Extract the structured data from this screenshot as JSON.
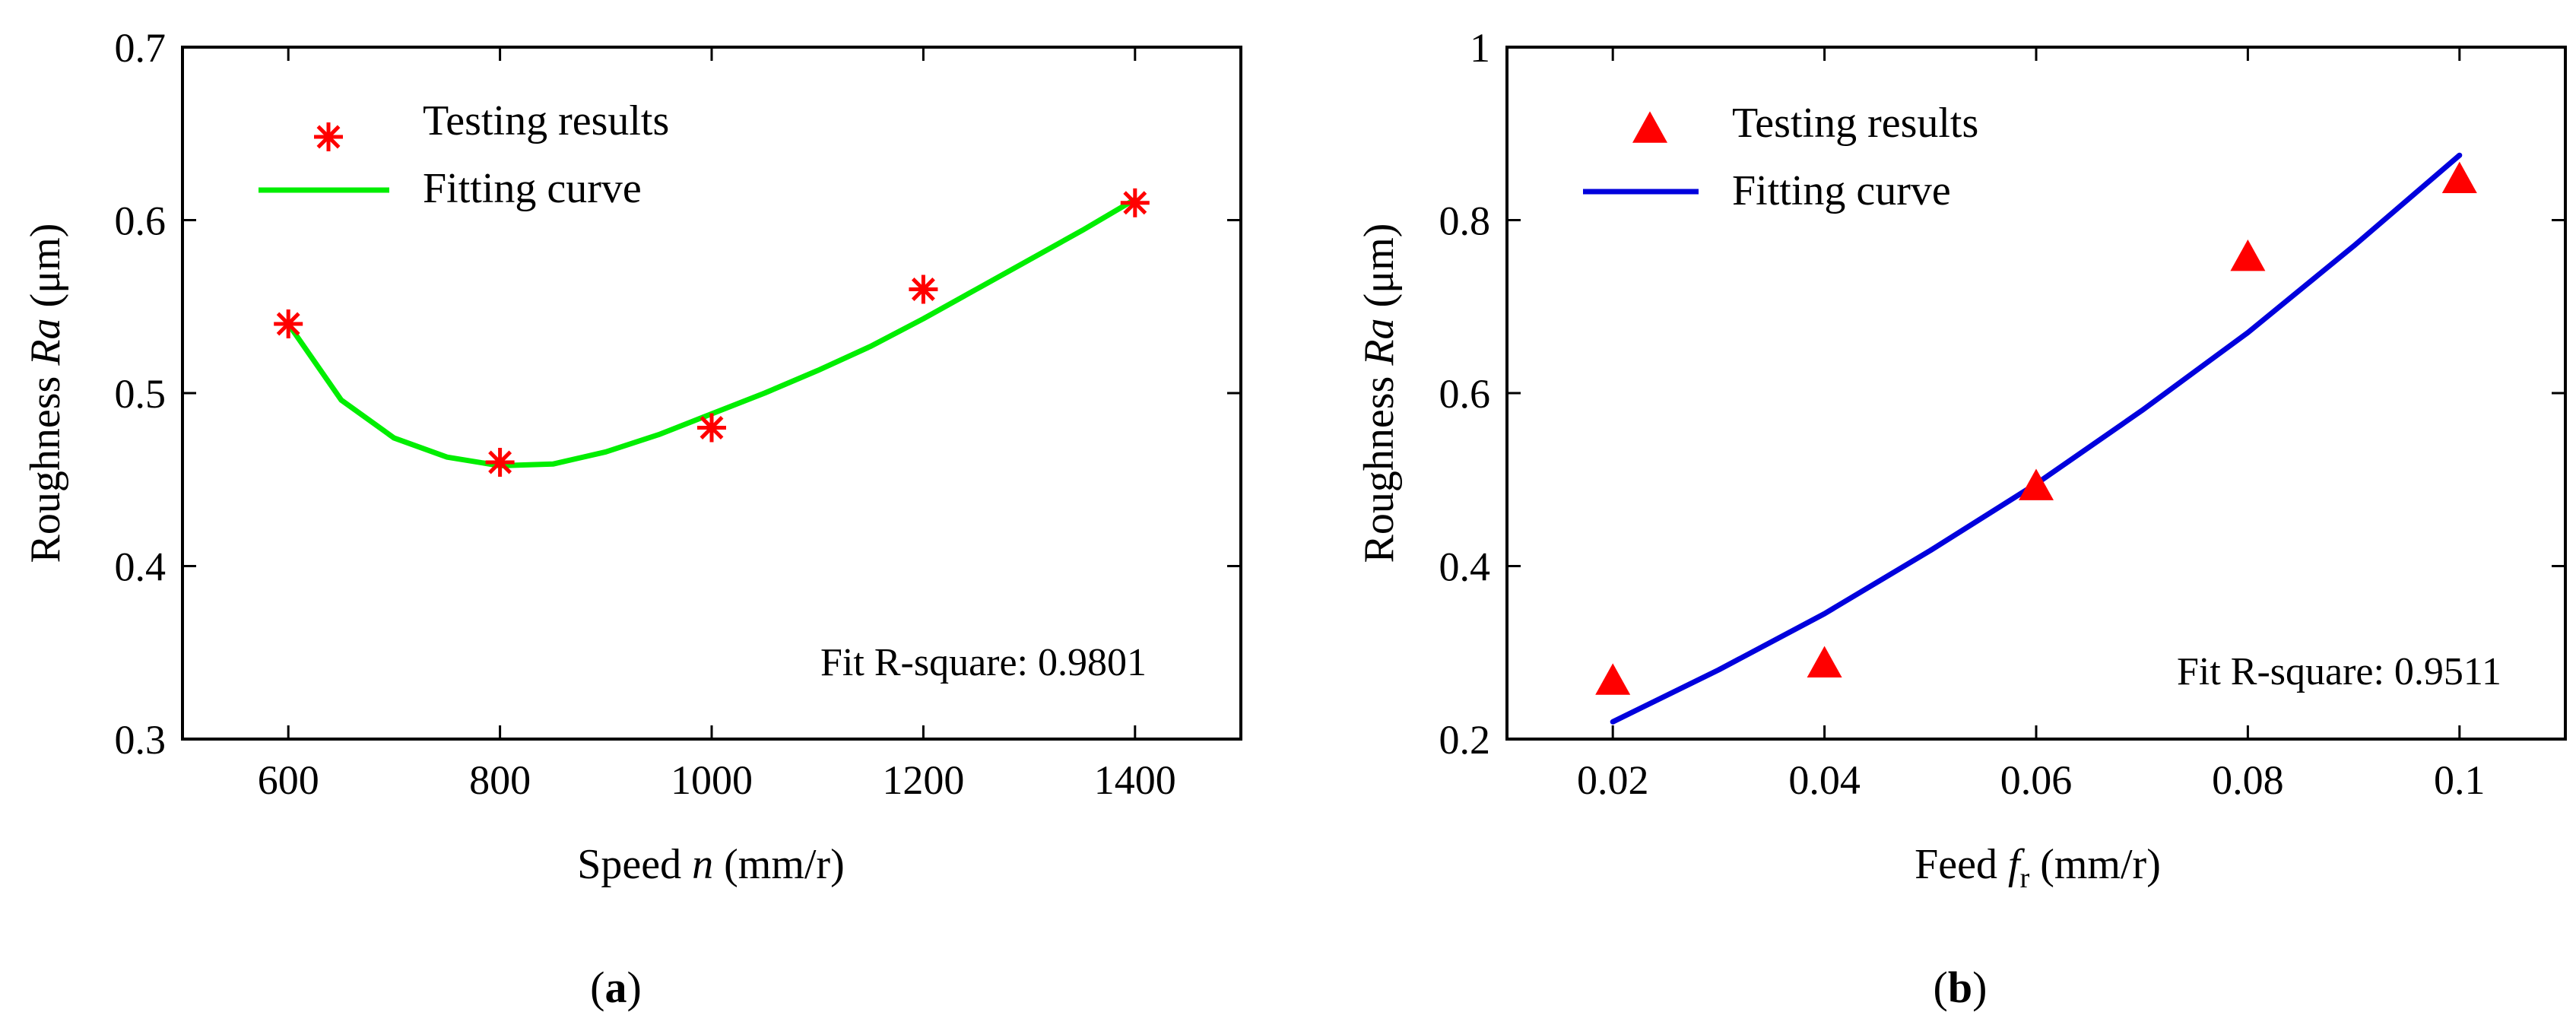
{
  "chart_data": [
    {
      "panel": "a",
      "type": "scatter",
      "title": "",
      "xlabel": {
        "prefix": "Speed ",
        "var": "n",
        "unit": " (mm/r)"
      },
      "ylabel": {
        "prefix": "Roughness ",
        "var": "Ra",
        "unit": " (μm)"
      },
      "xlim": [
        500,
        1500
      ],
      "ylim": [
        0.3,
        0.7
      ],
      "xticks": [
        600,
        800,
        1000,
        1200,
        1400
      ],
      "xtick_labels": [
        "600",
        "800",
        "1000",
        "1200",
        "1400"
      ],
      "yticks": [
        0.3,
        0.4,
        0.5,
        0.6,
        0.7
      ],
      "ytick_labels": [
        "0.3",
        "0.4",
        "0.5",
        "0.6",
        "0.7"
      ],
      "grid": false,
      "legend_position": "top-left",
      "series": [
        {
          "name": "Testing results",
          "kind": "markers",
          "marker": "asterisk",
          "color": "#ff0000",
          "x": [
            600,
            800,
            1000,
            1200,
            1400
          ],
          "y": [
            0.54,
            0.46,
            0.48,
            0.56,
            0.61
          ]
        },
        {
          "name": "Fitting curve",
          "kind": "line",
          "color": "#00ee00",
          "x": [
            600,
            650,
            700,
            750,
            800,
            850,
            900,
            950,
            1000,
            1050,
            1100,
            1150,
            1200,
            1250,
            1300,
            1350,
            1400
          ],
          "y": [
            0.54,
            0.496,
            0.474,
            0.463,
            0.458,
            0.459,
            0.466,
            0.476,
            0.488,
            0.5,
            0.513,
            0.527,
            0.543,
            0.56,
            0.577,
            0.594,
            0.612
          ]
        }
      ],
      "annotation": "Fit R-square: 0.9801",
      "caption": "a"
    },
    {
      "panel": "b",
      "type": "scatter",
      "title": "",
      "xlabel": {
        "prefix": "Feed ",
        "var": "f",
        "sub": "r",
        "unit": " (mm/r)"
      },
      "ylabel": {
        "prefix": "Roughness ",
        "var": "Ra",
        "unit": " (μm)"
      },
      "xlim": [
        0.01,
        0.11
      ],
      "ylim": [
        0.2,
        1.0
      ],
      "xticks": [
        0.02,
        0.04,
        0.06,
        0.08,
        0.1
      ],
      "xtick_labels": [
        "0.02",
        "0.04",
        "0.06",
        "0.08",
        "0.1"
      ],
      "yticks": [
        0.2,
        0.4,
        0.6,
        0.8,
        1.0
      ],
      "ytick_labels": [
        "0.2",
        "0.4",
        "0.6",
        "0.8",
        "1"
      ],
      "grid": false,
      "legend_position": "top-left",
      "series": [
        {
          "name": "Testing results",
          "kind": "markers",
          "marker": "triangle",
          "color": "#ff0000",
          "x": [
            0.02,
            0.04,
            0.06,
            0.08,
            0.1
          ],
          "y": [
            0.265,
            0.285,
            0.49,
            0.755,
            0.845
          ]
        },
        {
          "name": "Fitting curve",
          "kind": "line",
          "color": "#0000dd",
          "x": [
            0.02,
            0.03,
            0.04,
            0.05,
            0.06,
            0.07,
            0.08,
            0.09,
            0.1
          ],
          "y": [
            0.22,
            0.28,
            0.345,
            0.418,
            0.495,
            0.58,
            0.67,
            0.77,
            0.875
          ]
        }
      ],
      "annotation": "Fit R-square: 0.9511",
      "caption": "b"
    }
  ]
}
